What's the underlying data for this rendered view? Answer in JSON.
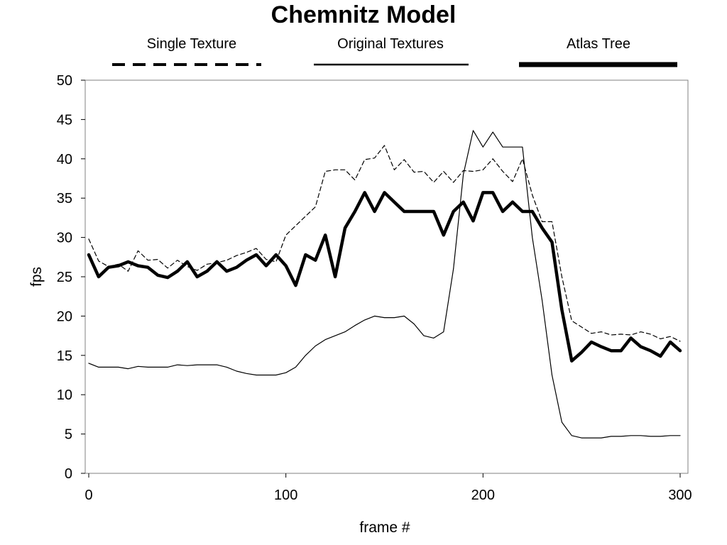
{
  "chart_data": {
    "type": "line",
    "title": "Chemnitz Model",
    "xlabel": "frame #",
    "ylabel": "fps",
    "xlim": [
      0,
      300
    ],
    "ylim": [
      0,
      50
    ],
    "x_ticks": [
      0,
      100,
      200,
      300
    ],
    "y_ticks": [
      0,
      5,
      10,
      15,
      20,
      25,
      30,
      35,
      40,
      45,
      50
    ],
    "grid": false,
    "legend_position": "top",
    "series": [
      {
        "name": "Single Texture",
        "style": "dashed",
        "color": "#000000",
        "x": [
          0,
          5,
          10,
          15,
          20,
          25,
          30,
          35,
          40,
          45,
          50,
          55,
          60,
          65,
          70,
          75,
          80,
          85,
          90,
          95,
          100,
          105,
          110,
          115,
          120,
          125,
          130,
          135,
          140,
          145,
          150,
          155,
          160,
          165,
          170,
          175,
          180,
          185,
          190,
          195,
          200,
          205,
          210,
          215,
          220,
          225,
          230,
          235,
          240,
          245,
          250,
          255,
          260,
          265,
          270,
          275,
          280,
          285,
          290,
          295,
          300
        ],
        "y": [
          29.8,
          27,
          26.3,
          26.6,
          25.7,
          28.3,
          27.1,
          27.2,
          26.1,
          27.1,
          26.3,
          25.8,
          26.6,
          26.8,
          27.1,
          27.7,
          28.1,
          28.6,
          27.2,
          26.9,
          30.3,
          31.5,
          32.7,
          33.9,
          38.4,
          38.6,
          38.6,
          37.3,
          39.9,
          40.1,
          41.7,
          38.6,
          39.9,
          38.3,
          38.4,
          37,
          38.4,
          37,
          38.5,
          38.4,
          38.6,
          40,
          38.4,
          37.1,
          40,
          35.4,
          32,
          32,
          25,
          19.4,
          18.6,
          17.8,
          18,
          17.6,
          17.7,
          17.6,
          18,
          17.7,
          17.1,
          17.4,
          16.8
        ]
      },
      {
        "name": "Original Textures",
        "style": "solid-thin",
        "color": "#000000",
        "x": [
          0,
          5,
          10,
          15,
          20,
          25,
          30,
          35,
          40,
          45,
          50,
          55,
          60,
          65,
          70,
          75,
          80,
          85,
          90,
          95,
          100,
          105,
          110,
          115,
          120,
          125,
          130,
          135,
          140,
          145,
          150,
          155,
          160,
          165,
          170,
          175,
          180,
          185,
          190,
          195,
          200,
          205,
          210,
          215,
          220,
          225,
          230,
          235,
          240,
          245,
          250,
          255,
          260,
          265,
          270,
          275,
          280,
          285,
          290,
          295,
          300
        ],
        "y": [
          14,
          13.5,
          13.5,
          13.5,
          13.3,
          13.6,
          13.5,
          13.5,
          13.5,
          13.8,
          13.7,
          13.8,
          13.8,
          13.8,
          13.5,
          13,
          12.7,
          12.5,
          12.5,
          12.5,
          12.8,
          13.5,
          15,
          16.2,
          17,
          17.5,
          18,
          18.8,
          19.5,
          20,
          19.8,
          19.8,
          20,
          19,
          17.5,
          17.2,
          18,
          26,
          38,
          43.6,
          41.5,
          43.4,
          41.5,
          41.5,
          41.5,
          30,
          22,
          12.5,
          6.5,
          4.8,
          4.5,
          4.5,
          4.5,
          4.7,
          4.7,
          4.8,
          4.8,
          4.7,
          4.7,
          4.8,
          4.8
        ]
      },
      {
        "name": "Atlas Tree",
        "style": "solid-thick",
        "color": "#000000",
        "x": [
          0,
          5,
          10,
          15,
          20,
          25,
          30,
          35,
          40,
          45,
          50,
          55,
          60,
          65,
          70,
          75,
          80,
          85,
          90,
          95,
          100,
          105,
          110,
          115,
          120,
          125,
          130,
          135,
          140,
          145,
          150,
          155,
          160,
          165,
          170,
          175,
          180,
          185,
          190,
          195,
          200,
          205,
          210,
          215,
          220,
          225,
          230,
          235,
          240,
          245,
          250,
          255,
          260,
          265,
          270,
          275,
          280,
          285,
          290,
          295,
          300
        ],
        "y": [
          27.8,
          25,
          26.2,
          26.4,
          26.9,
          26.4,
          26.2,
          25.2,
          24.9,
          25.7,
          26.9,
          25,
          25.7,
          26.9,
          25.7,
          26.2,
          27.1,
          27.8,
          26.4,
          27.8,
          26.4,
          23.9,
          27.8,
          27.1,
          30.3,
          25,
          31.2,
          33.3,
          35.7,
          33.3,
          35.7,
          34.5,
          33.3,
          33.3,
          33.3,
          33.3,
          30.3,
          33.3,
          34.5,
          32.1,
          35.7,
          35.7,
          33.3,
          34.5,
          33.3,
          33.3,
          31.2,
          29.4,
          20.8,
          14.3,
          15.4,
          16.7,
          16.1,
          15.6,
          15.6,
          17.2,
          16.1,
          15.6,
          14.9,
          16.7,
          15.6
        ]
      }
    ]
  }
}
